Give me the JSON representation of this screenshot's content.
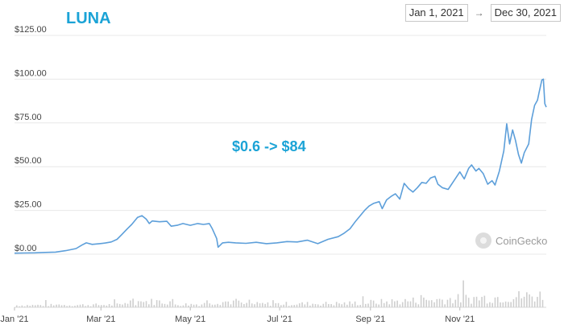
{
  "header": {
    "title": "LUNA",
    "start_date": "Jan 1, 2021",
    "end_date": "Dec 30, 2021",
    "arrow": "→"
  },
  "annotation": "$0.6 -> $84",
  "credit": "CoinGecko",
  "colors": {
    "title": "#1ba3d6",
    "line": "#5d9fda",
    "volume": "#cfcfcf",
    "grid": "#e8e8e8"
  },
  "chart_data": {
    "type": "line",
    "title": "LUNA",
    "ylim": [
      0,
      125
    ],
    "y_ticks": [
      {
        "value": 0,
        "label": "$0.00"
      },
      {
        "value": 25,
        "label": "$25.00"
      },
      {
        "value": 50,
        "label": "$50.00"
      },
      {
        "value": 75,
        "label": "$75.00"
      },
      {
        "value": 100,
        "label": "$100.00"
      },
      {
        "value": 125,
        "label": "$125.00"
      }
    ],
    "x_ticks": [
      {
        "date": "2021-01-01",
        "label": "Jan '21"
      },
      {
        "date": "2021-03-01",
        "label": "Mar '21"
      },
      {
        "date": "2021-05-01",
        "label": "May '21"
      },
      {
        "date": "2021-07-01",
        "label": "Jul '21"
      },
      {
        "date": "2021-09-01",
        "label": "Sep '21"
      },
      {
        "date": "2021-11-01",
        "label": "Nov '21"
      }
    ],
    "series": [
      {
        "values": [
          [
            "2021-01-01",
            0.6
          ],
          [
            "2021-01-08",
            0.7
          ],
          [
            "2021-01-15",
            0.8
          ],
          [
            "2021-01-22",
            1.0
          ],
          [
            "2021-01-29",
            1.2
          ],
          [
            "2021-02-05",
            2.0
          ],
          [
            "2021-02-12",
            3.2
          ],
          [
            "2021-02-16",
            5.2
          ],
          [
            "2021-02-19",
            6.5
          ],
          [
            "2021-02-23",
            5.6
          ],
          [
            "2021-02-28",
            6.0
          ],
          [
            "2021-03-04",
            6.4
          ],
          [
            "2021-03-08",
            7.0
          ],
          [
            "2021-03-12",
            8.5
          ],
          [
            "2021-03-15",
            11.0
          ],
          [
            "2021-03-19",
            14.5
          ],
          [
            "2021-03-22",
            17.0
          ],
          [
            "2021-03-26",
            21.0
          ],
          [
            "2021-03-29",
            22.0
          ],
          [
            "2021-04-01",
            20.0
          ],
          [
            "2021-04-03",
            17.5
          ],
          [
            "2021-04-05",
            19.0
          ],
          [
            "2021-04-10",
            18.5
          ],
          [
            "2021-04-15",
            18.8
          ],
          [
            "2021-04-18",
            16.0
          ],
          [
            "2021-04-22",
            16.5
          ],
          [
            "2021-04-26",
            17.5
          ],
          [
            "2021-05-01",
            16.5
          ],
          [
            "2021-05-06",
            17.5
          ],
          [
            "2021-05-10",
            17.0
          ],
          [
            "2021-05-14",
            17.5
          ],
          [
            "2021-05-16",
            14.5
          ],
          [
            "2021-05-19",
            9.0
          ],
          [
            "2021-05-20",
            4.0
          ],
          [
            "2021-05-23",
            6.5
          ],
          [
            "2021-05-27",
            6.8
          ],
          [
            "2021-06-01",
            6.5
          ],
          [
            "2021-06-08",
            6.2
          ],
          [
            "2021-06-15",
            6.8
          ],
          [
            "2021-06-22",
            6.0
          ],
          [
            "2021-06-29",
            6.5
          ],
          [
            "2021-07-06",
            7.2
          ],
          [
            "2021-07-13",
            7.0
          ],
          [
            "2021-07-20",
            8.0
          ],
          [
            "2021-07-27",
            6.0
          ],
          [
            "2021-08-03",
            8.5
          ],
          [
            "2021-08-10",
            10.0
          ],
          [
            "2021-08-14",
            12.0
          ],
          [
            "2021-08-18",
            14.5
          ],
          [
            "2021-08-22",
            19.0
          ],
          [
            "2021-08-25",
            22.0
          ],
          [
            "2021-08-28",
            25.0
          ],
          [
            "2021-08-31",
            27.5
          ],
          [
            "2021-09-03",
            29.0
          ],
          [
            "2021-09-07",
            30.0
          ],
          [
            "2021-09-09",
            26.0
          ],
          [
            "2021-09-12",
            31.0
          ],
          [
            "2021-09-15",
            33.0
          ],
          [
            "2021-09-18",
            34.5
          ],
          [
            "2021-09-21",
            31.5
          ],
          [
            "2021-09-24",
            40.5
          ],
          [
            "2021-09-27",
            37.5
          ],
          [
            "2021-09-30",
            35.5
          ],
          [
            "2021-10-03",
            38.0
          ],
          [
            "2021-10-06",
            41.0
          ],
          [
            "2021-10-09",
            40.5
          ],
          [
            "2021-10-12",
            43.5
          ],
          [
            "2021-10-15",
            44.5
          ],
          [
            "2021-10-17",
            40.0
          ],
          [
            "2021-10-20",
            38.0
          ],
          [
            "2021-10-24",
            37.0
          ],
          [
            "2021-10-28",
            42.0
          ],
          [
            "2021-11-01",
            47.0
          ],
          [
            "2021-11-04",
            43.0
          ],
          [
            "2021-11-07",
            49.0
          ],
          [
            "2021-11-09",
            51.0
          ],
          [
            "2021-11-12",
            47.5
          ],
          [
            "2021-11-14",
            49.0
          ],
          [
            "2021-11-17",
            46.0
          ],
          [
            "2021-11-20",
            40.0
          ],
          [
            "2021-11-23",
            42.0
          ],
          [
            "2021-11-25",
            39.5
          ],
          [
            "2021-11-28",
            47.5
          ],
          [
            "2021-12-01",
            59.0
          ],
          [
            "2021-12-03",
            74.5
          ],
          [
            "2021-12-05",
            63.0
          ],
          [
            "2021-12-07",
            71.0
          ],
          [
            "2021-12-09",
            65.0
          ],
          [
            "2021-12-11",
            57.0
          ],
          [
            "2021-12-13",
            52.0
          ],
          [
            "2021-12-15",
            58.0
          ],
          [
            "2021-12-18",
            63.0
          ],
          [
            "2021-12-20",
            77.0
          ],
          [
            "2021-12-22",
            85.0
          ],
          [
            "2021-12-24",
            88.0
          ],
          [
            "2021-12-25",
            92.0
          ],
          [
            "2021-12-27",
            99.5
          ],
          [
            "2021-12-28",
            100.0
          ],
          [
            "2021-12-29",
            86.0
          ],
          [
            "2021-12-30",
            84.0
          ]
        ]
      }
    ],
    "volume_bars": true,
    "grid": true
  }
}
